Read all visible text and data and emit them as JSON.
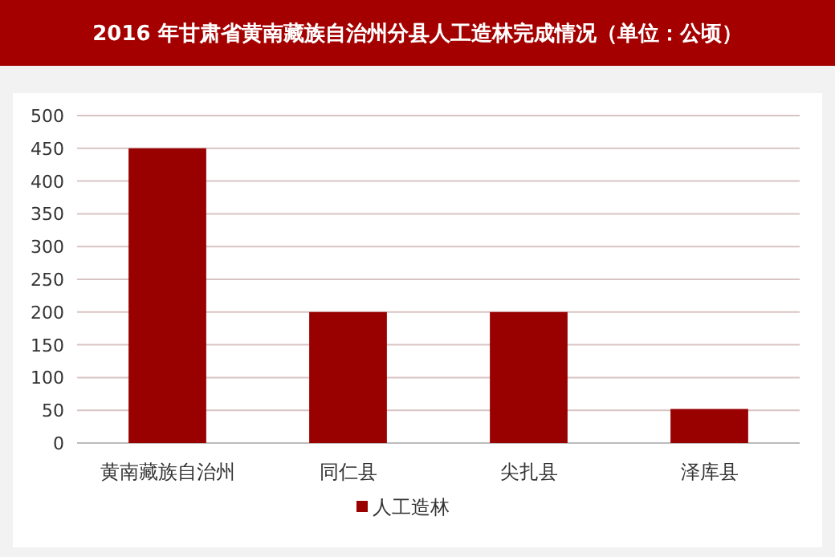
{
  "chart_data": {
    "type": "bar",
    "title": "2016 年甘肃省黄南藏族自治州分县人工造林完成情况（单位：公顷）",
    "categories": [
      "黄南藏族自治州",
      "同仁县",
      "尖扎县",
      "泽库县"
    ],
    "series": [
      {
        "name": "人工造林",
        "color": "#990000",
        "values": [
          450,
          200,
          200,
          52
        ]
      }
    ],
    "ylim": [
      0,
      500
    ],
    "yticks": [
      0,
      50,
      100,
      150,
      200,
      250,
      300,
      350,
      400,
      450,
      500
    ],
    "grid": "y",
    "legend": "bottom"
  }
}
